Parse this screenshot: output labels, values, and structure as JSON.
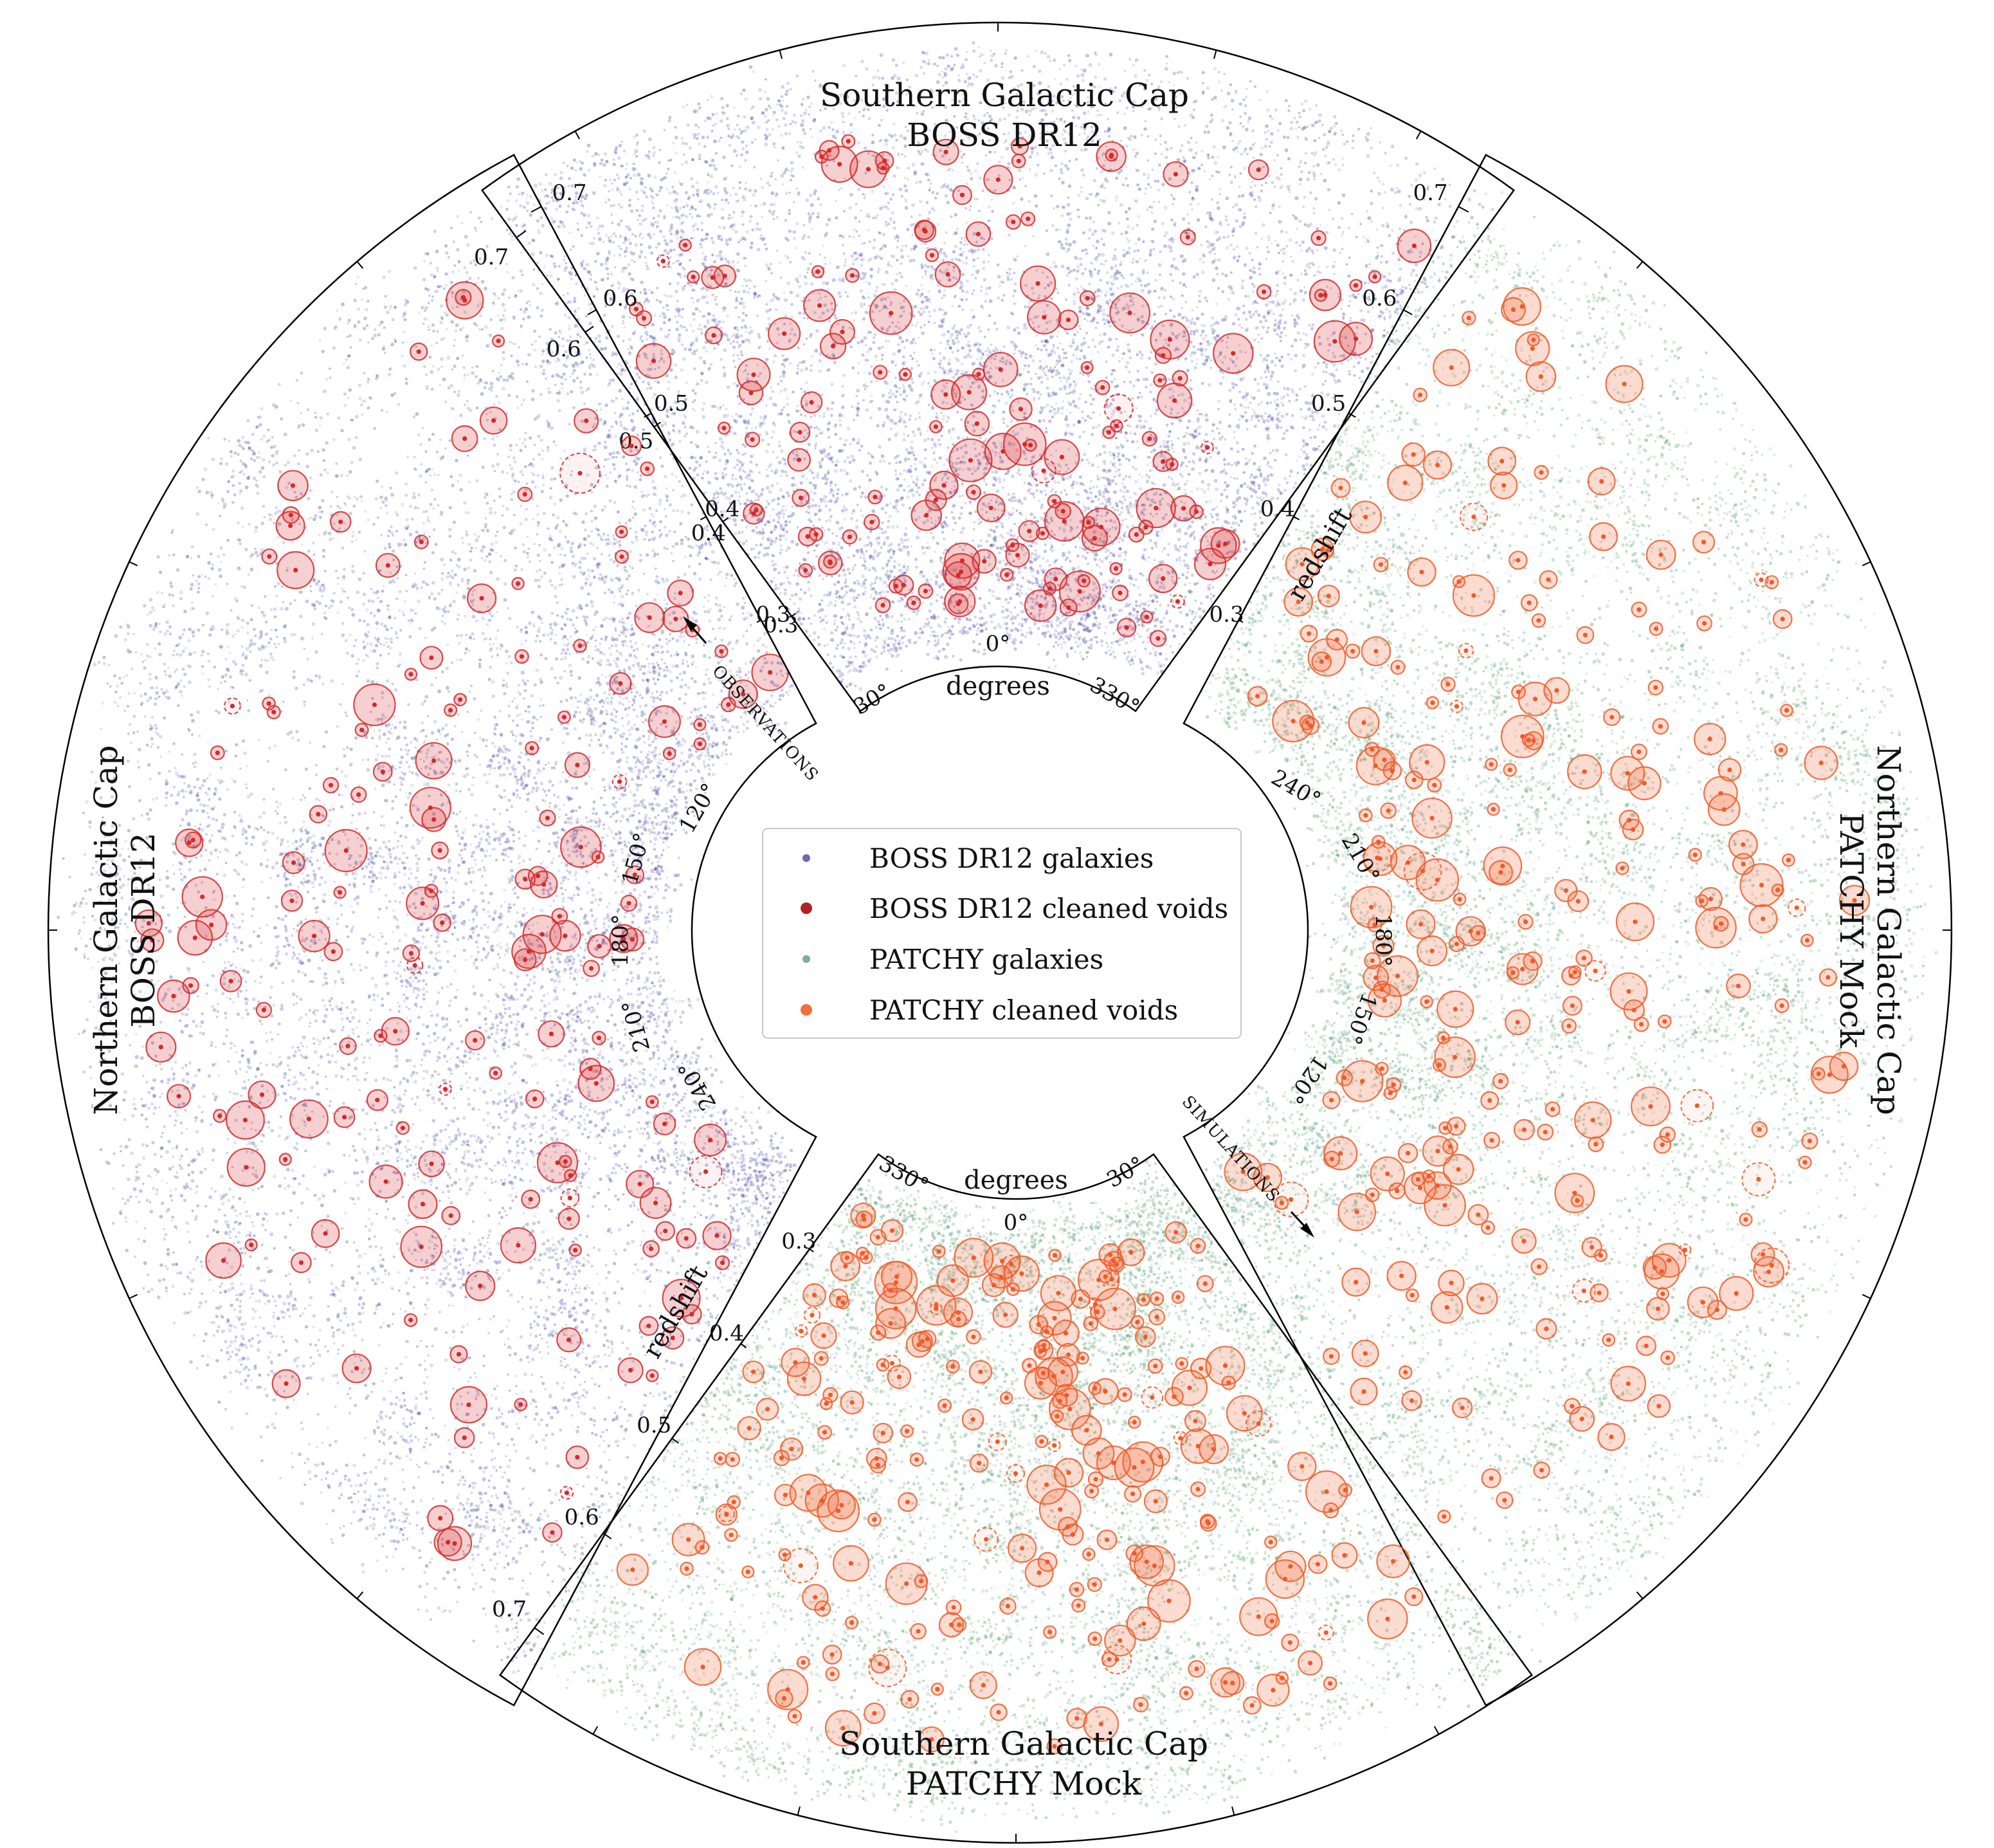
{
  "chart_data": {
    "type": "scatter",
    "description_title": "BOSS DR12 and PATCHY mock galaxy and void distributions in redshift-RA wedges",
    "wedges": [
      {
        "id": "sgc-boss",
        "title_line1": "Southern Galactic Cap",
        "title_line2": "BOSS  DR12",
        "ra_label_left": "30°",
        "ra_label_mid": "0°",
        "ra_label_right": "330°",
        "ra_axis_label": "degrees",
        "redshift_ticks": [
          "0.3",
          "0.4",
          "0.5",
          "0.6",
          "0.7"
        ],
        "redshift_range": [
          0.2,
          0.75
        ],
        "galaxy_series": "BOSS DR12 galaxies",
        "void_series": "BOSS DR12 cleaned voids"
      },
      {
        "id": "ngc-boss",
        "title_line1": "Northern Galactic Cap",
        "title_line2": "BOSS  DR12",
        "ra_label_top": "120°",
        "ra_label_2": "150°",
        "ra_label_mid": "180°",
        "ra_label_4": "210°",
        "ra_label_bottom": "240°",
        "redshift_axis_label": "redshift",
        "redshift_ticks": [
          "0.3",
          "0.4",
          "0.5",
          "0.6",
          "0.7"
        ],
        "redshift_range": [
          0.2,
          0.75
        ],
        "galaxy_series": "BOSS DR12 galaxies",
        "void_series": "BOSS DR12 cleaned voids"
      },
      {
        "id": "ngc-patchy",
        "title_line1": "Northern Galactic Cap",
        "title_line2": "PATCHY Mock",
        "ra_label_top": "240°",
        "ra_label_2": "210°",
        "ra_label_mid": "180°",
        "ra_label_4": "150°",
        "ra_label_bottom": "120°",
        "redshift_axis_label": "redshift",
        "redshift_ticks": [
          "0.3",
          "0.4",
          "0.5",
          "0.6",
          "0.7"
        ],
        "redshift_range": [
          0.2,
          0.75
        ],
        "galaxy_series": "PATCHY galaxies",
        "void_series": "PATCHY cleaned voids"
      },
      {
        "id": "sgc-patchy",
        "title_line1": "Southern Galactic Cap",
        "title_line2": "PATCHY Mock",
        "ra_label_left": "330°",
        "ra_label_mid": "0°",
        "ra_label_right": "30°",
        "ra_axis_label": "degrees",
        "redshift_ticks": [
          "0.3",
          "0.4",
          "0.5",
          "0.6",
          "0.7"
        ],
        "redshift_range": [
          0.2,
          0.75
        ],
        "galaxy_series": "PATCHY galaxies",
        "void_series": "PATCHY cleaned voids"
      }
    ],
    "annotations": {
      "observations": "OBSERVATIONS",
      "simulations": "SIMULATIONS"
    },
    "legend": [
      {
        "label": "BOSS DR12 galaxies",
        "color": "#6a6ab8",
        "marker_size": "small"
      },
      {
        "label": "BOSS DR12 cleaned voids",
        "color": "#b22222",
        "marker_size": "large"
      },
      {
        "label": "PATCHY galaxies",
        "color": "#7fb08f",
        "marker_size": "small"
      },
      {
        "label": "PATCHY cleaned voids",
        "color": "#f07040",
        "marker_size": "large"
      }
    ],
    "legend_position": "center",
    "colors": {
      "boss_galaxy": "#2a2a9a",
      "boss_void": "#d42a2a",
      "patchy_galaxy": "#2e8a55",
      "patchy_void": "#f05a28"
    }
  }
}
